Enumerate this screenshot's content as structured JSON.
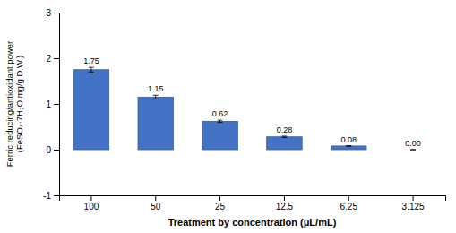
{
  "chart_data": {
    "type": "bar",
    "categories": [
      "100",
      "50",
      "25",
      "12.5",
      "6.25",
      "3.125"
    ],
    "values": [
      1.75,
      1.15,
      0.62,
      0.28,
      0.08,
      0.0
    ],
    "errors": [
      0.05,
      0.04,
      0.025,
      0.015,
      0.008,
      0.005
    ],
    "value_labels": [
      "1.75",
      "1.15",
      "0.62",
      "0.28",
      "0.08",
      "0.00"
    ],
    "data_labels": true,
    "color": "#4472C4",
    "xlabel": "Treatment by concentration (μL/mL)",
    "ylabel": [
      "Ferric reducing/antioxidant power",
      "(FeSO₄·7H₂O mg/g D.W.)"
    ],
    "ylim": [
      -1,
      3
    ],
    "yticks": [
      -1,
      0,
      1,
      2,
      3
    ],
    "grid": false
  }
}
